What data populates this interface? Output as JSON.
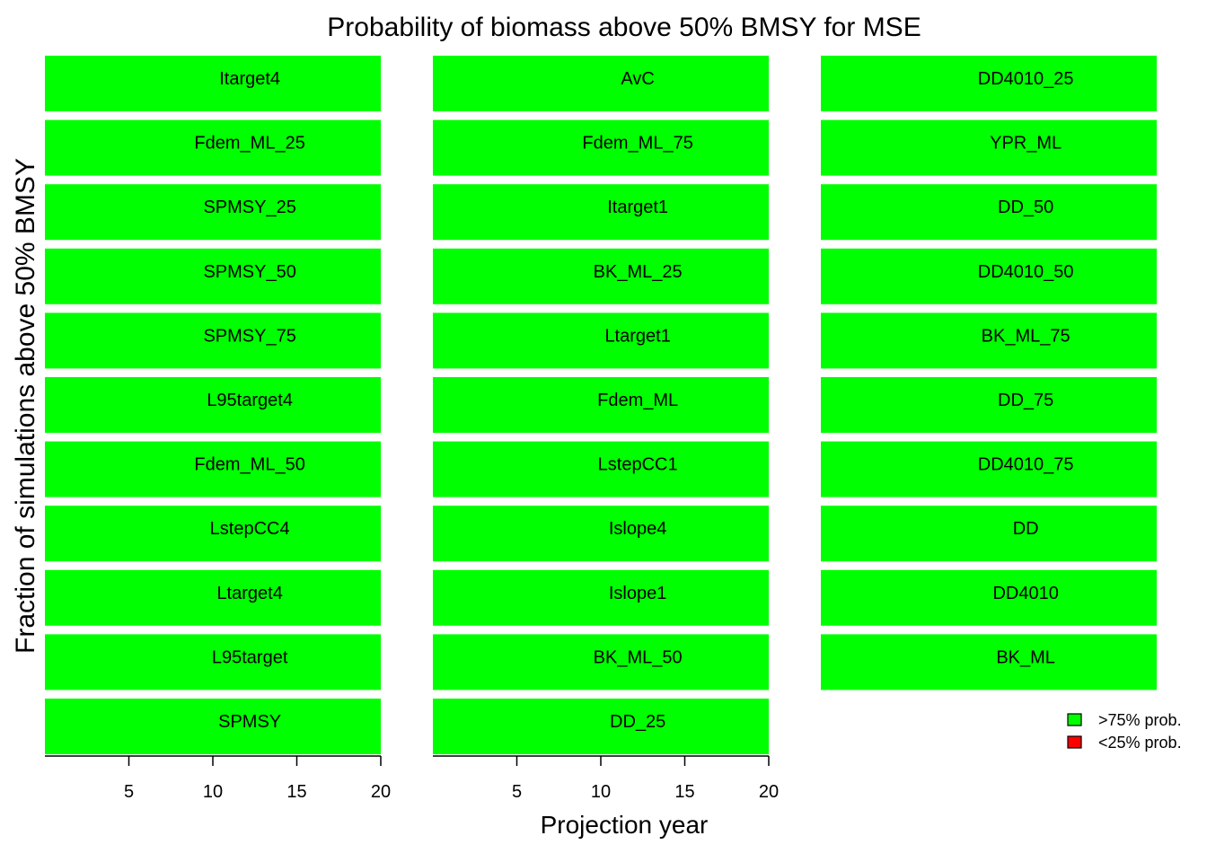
{
  "chart_data": {
    "type": "area",
    "title": "Probability of biomass above 50% BMSY for MSE",
    "xlabel": "Projection year",
    "ylabel": "Fraction of simulations above 50% BMSY",
    "xlim": [
      0,
      20
    ],
    "ylim": [
      0,
      1
    ],
    "xticks": [
      5,
      10,
      15,
      20
    ],
    "grid": false,
    "legend": {
      "position": "bottom-right",
      "entries": [
        {
          "label": ">75% prob.",
          "color": "#00ff00"
        },
        {
          "label": "<25% prob.",
          "color": "#ff0000"
        }
      ]
    },
    "colors": {
      "high": "#00ff00",
      "low": "#ff0000"
    },
    "columns": [
      [
        "Itarget4",
        "Fdem_ML_25",
        "SPMSY_25",
        "SPMSY_50",
        "SPMSY_75",
        "L95target4",
        "Fdem_ML_50",
        "LstepCC4",
        "Ltarget4",
        "L95target",
        "SPMSY"
      ],
      [
        "AvC",
        "Fdem_ML_75",
        "Itarget1",
        "BK_ML_25",
        "Ltarget1",
        "Fdem_ML",
        "LstepCC1",
        "Islope4",
        "Islope1",
        "BK_ML_50",
        "DD_25"
      ],
      [
        "DD4010_25",
        "YPR_ML",
        "DD_50",
        "DD4010_50",
        "BK_ML_75",
        "DD_75",
        "DD4010_75",
        "DD",
        "DD4010",
        "BK_ML"
      ]
    ],
    "value_all_years": 1.0
  }
}
